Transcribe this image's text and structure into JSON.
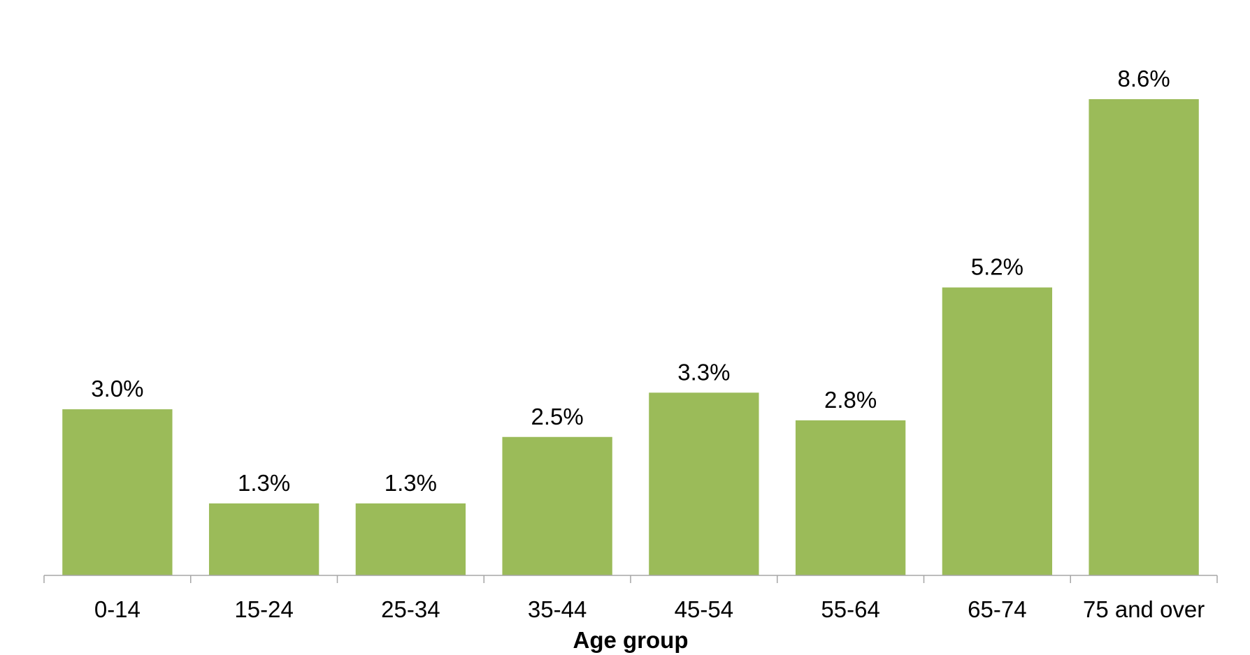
{
  "chart_data": {
    "type": "bar",
    "categories": [
      "0-14",
      "15-24",
      "25-34",
      "35-44",
      "45-54",
      "55-64",
      "65-74",
      "75 and over"
    ],
    "values": [
      3.0,
      1.3,
      1.3,
      2.5,
      3.3,
      2.8,
      5.2,
      8.6
    ],
    "data_labels": [
      "3.0%",
      "1.3%",
      "1.3%",
      "2.5%",
      "3.3%",
      "2.8%",
      "5.2%",
      "8.6%"
    ],
    "title": "",
    "xlabel": "Age group",
    "ylabel": "",
    "ylim": [
      0,
      10
    ],
    "grid": false,
    "legend": "none",
    "bar_color": "#9BBB59"
  }
}
